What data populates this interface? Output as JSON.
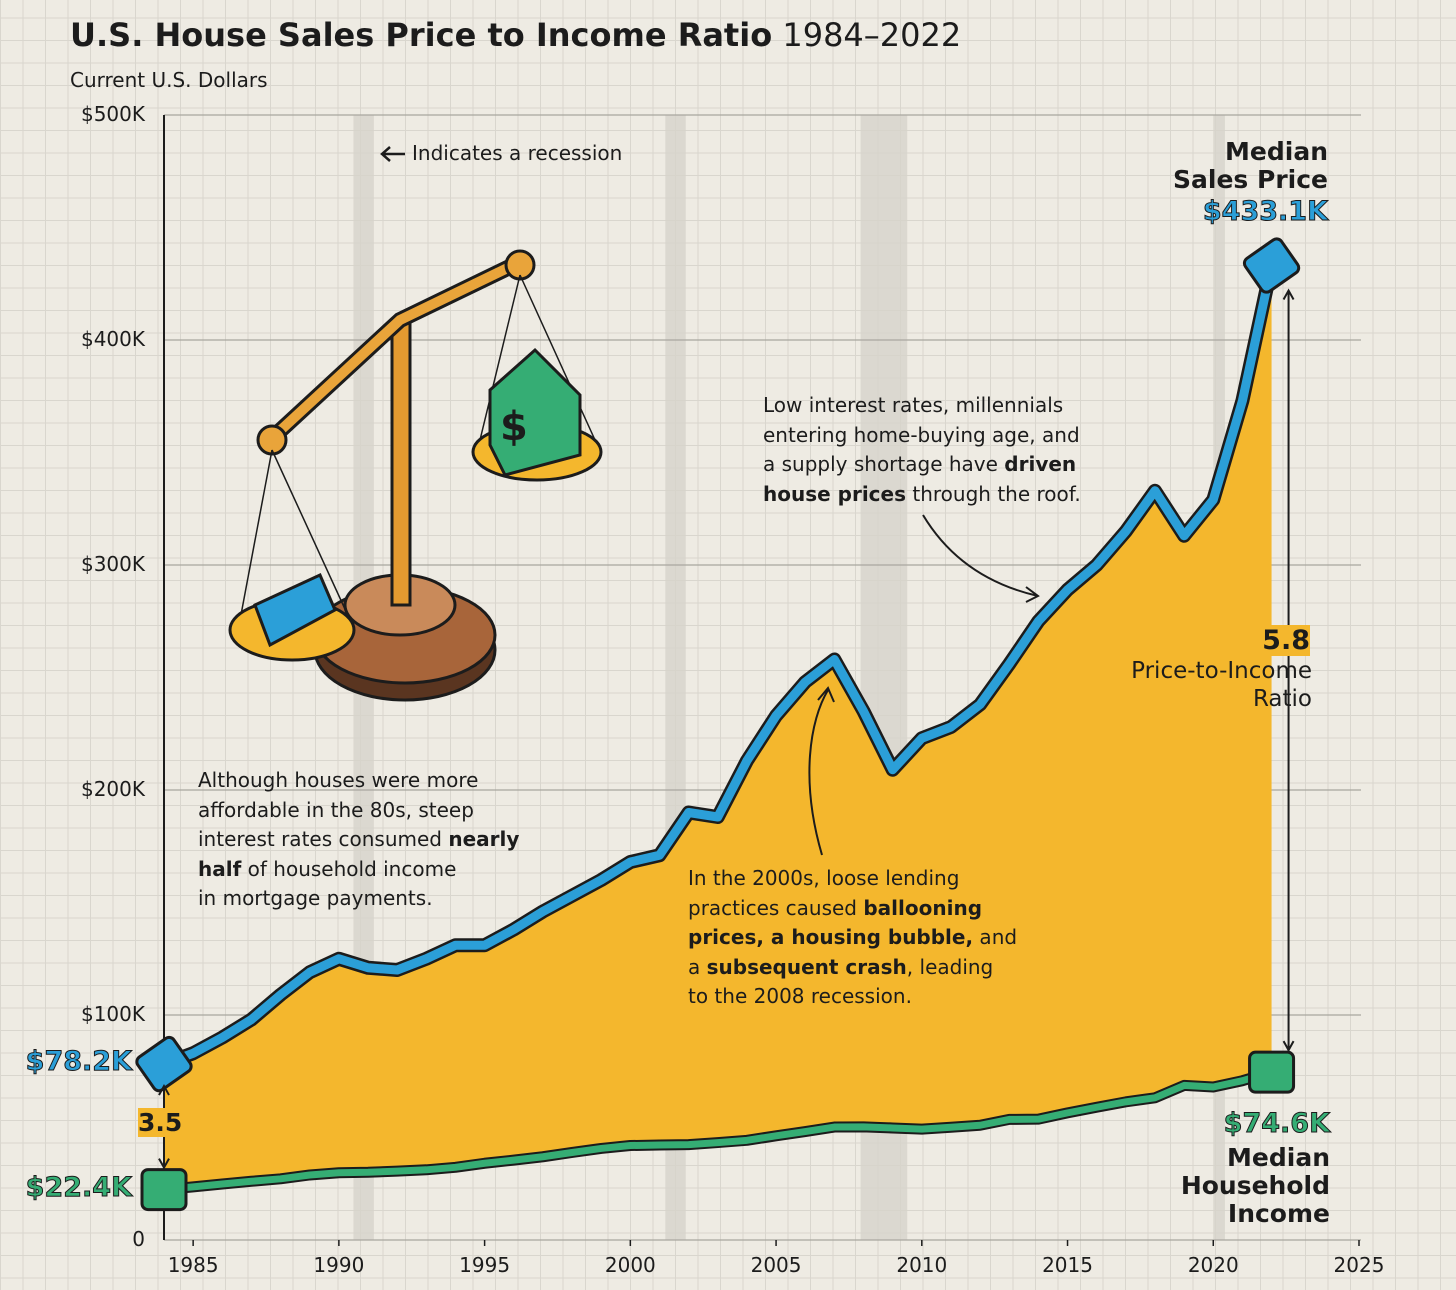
{
  "chart_data": {
    "type": "area-line",
    "title": "U.S. House Sales Price to Income Ratio",
    "title_years": "1984–2022",
    "y_label": "Current U.S. Dollars",
    "recession_note": "Indicates a recession",
    "x": [
      1984,
      1985,
      1986,
      1987,
      1988,
      1989,
      1990,
      1991,
      1992,
      1993,
      1994,
      1995,
      1996,
      1997,
      1998,
      1999,
      2000,
      2001,
      2002,
      2003,
      2004,
      2005,
      2006,
      2007,
      2008,
      2009,
      2010,
      2011,
      2012,
      2013,
      2014,
      2015,
      2016,
      2017,
      2018,
      2019,
      2020,
      2021,
      2022
    ],
    "series": [
      {
        "name": "Median Sales Price",
        "color": "#2b9fd8",
        "start_label": "$78.2K",
        "end_label": "$433.1K",
        "values": [
          78200,
          83000,
          90000,
          98000,
          109000,
          119000,
          125000,
          121000,
          120000,
          125000,
          131000,
          131000,
          138000,
          146000,
          153000,
          160000,
          168000,
          171000,
          190000,
          188000,
          213000,
          233000,
          248000,
          258000,
          235000,
          209000,
          223000,
          228000,
          238000,
          256000,
          275000,
          289000,
          300000,
          315000,
          333000,
          313000,
          329000,
          373000,
          433100
        ]
      },
      {
        "name": "Median Household Income",
        "color": "#35ad74",
        "start_label": "$22.4K",
        "end_label": "$74.6K",
        "values": [
          22400,
          23600,
          24900,
          26100,
          27200,
          28900,
          29900,
          30100,
          30600,
          31200,
          32300,
          34100,
          35500,
          37000,
          38900,
          40700,
          41990,
          42200,
          42400,
          43300,
          44300,
          46300,
          48200,
          50200,
          50300,
          49800,
          49300,
          50100,
          51000,
          53600,
          53700,
          56500,
          59000,
          61400,
          63200,
          68700,
          68000,
          70800,
          74600
        ]
      }
    ],
    "fill_color": "#f4b72d",
    "ratio_label": "Price-to-Income Ratio",
    "ratios": [
      {
        "x": 1984,
        "value": 3.5
      },
      {
        "x": 2022,
        "value": 5.8
      }
    ],
    "recessions": [
      [
        1990.5,
        1991.2
      ],
      [
        2001.2,
        2001.9
      ],
      [
        2007.9,
        2009.5
      ],
      [
        2020.0,
        2020.4
      ]
    ],
    "xlim": [
      1984,
      2025
    ],
    "xticks": [
      1985,
      1990,
      1995,
      2000,
      2005,
      2010,
      2015,
      2020,
      2025
    ],
    "ylim": [
      0,
      500000
    ],
    "yticks": [
      0,
      {
        "value": 100000,
        "label": "$100K"
      },
      {
        "value": 200000,
        "label": "$200K"
      },
      {
        "value": 300000,
        "label": "$300K"
      },
      {
        "value": 400000,
        "label": "$400K"
      },
      {
        "value": 500000,
        "label": "$500K"
      }
    ],
    "grid": true,
    "annotations": [
      {
        "lines": [
          [
            {
              "text": "Although houses were more"
            }
          ],
          [
            {
              "text": "affordable in the 80s, steep"
            }
          ],
          [
            {
              "text": "interest rates consumed "
            },
            {
              "text": "nearly",
              "bold": true
            }
          ],
          [
            {
              "text": "half",
              "bold": true
            },
            {
              "text": " of household income"
            }
          ],
          [
            {
              "text": "in mortgage payments."
            }
          ]
        ]
      },
      {
        "lines": [
          [
            {
              "text": "In the 2000s, loose lending"
            }
          ],
          [
            {
              "text": "practices caused "
            },
            {
              "text": "ballooning",
              "bold": true
            }
          ],
          [
            {
              "text": "prices, a housing bubble,",
              "bold": true
            },
            {
              "text": " and"
            }
          ],
          [
            {
              "text": "a "
            },
            {
              "text": "subsequent crash",
              "bold": true
            },
            {
              "text": ", leading"
            }
          ],
          [
            {
              "text": "to the 2008 recession."
            }
          ]
        ]
      },
      {
        "lines": [
          [
            {
              "text": "Low interest rates, millennials"
            }
          ],
          [
            {
              "text": "entering home-buying age, and"
            }
          ],
          [
            {
              "text": "a supply shortage have "
            },
            {
              "text": "driven",
              "bold": true
            }
          ],
          [
            {
              "text": "house prices",
              "bold": true
            },
            {
              "text": " through the roof."
            }
          ]
        ]
      }
    ]
  }
}
